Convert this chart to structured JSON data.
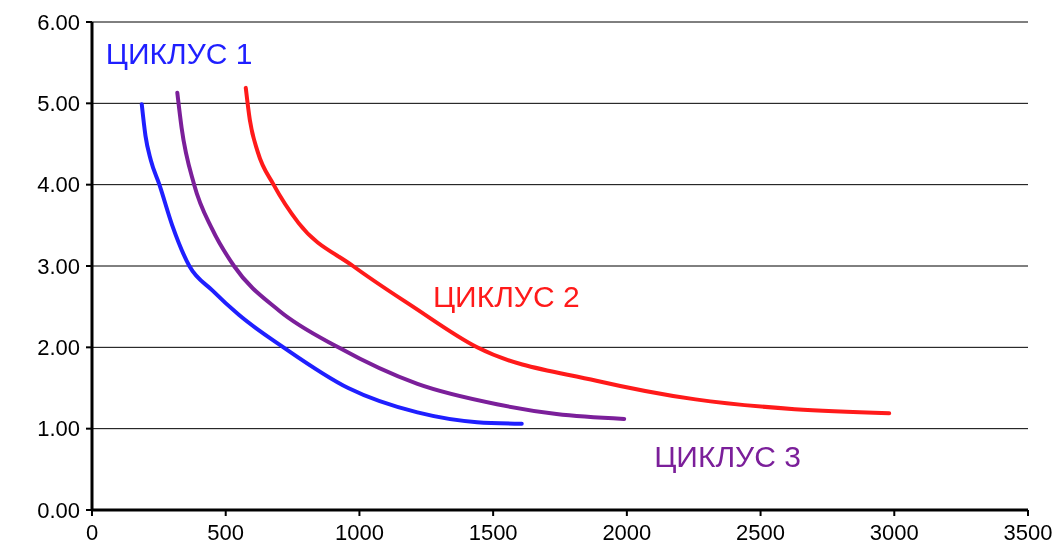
{
  "chart_data": {
    "type": "line",
    "xlim": [
      0,
      3500
    ],
    "xticks": [
      0,
      500,
      1000,
      1500,
      2000,
      2500,
      3000,
      3500
    ],
    "ylim": [
      0,
      6
    ],
    "yticks": [
      {
        "value": 0,
        "label": "0.00"
      },
      {
        "value": 1,
        "label": "1.00"
      },
      {
        "value": 2,
        "label": "2.00"
      },
      {
        "value": 3,
        "label": "3.00"
      },
      {
        "value": 4,
        "label": "4.00"
      },
      {
        "value": 5,
        "label": "5.00"
      },
      {
        "value": 6,
        "label": "6.00"
      }
    ],
    "grid": "y",
    "marker": "none",
    "line_style": "solid",
    "series": [
      {
        "name": "ЦИКЛУС 1",
        "color": "#1f1fff",
        "x": [
          186,
          200,
          220,
          252,
          300,
          364,
          450,
          549,
          716,
          958,
          1217,
          1440,
          1607
        ],
        "values": [
          4.99,
          4.6,
          4.3,
          4.0,
          3.5,
          3.0,
          2.7,
          2.4,
          2.0,
          1.5,
          1.2,
          1.08,
          1.06
        ]
      },
      {
        "name": "ЦИКЛУС 2",
        "color": "#ff1a1a",
        "x": [
          575,
          590,
          620,
          679,
          772,
          976,
          1200,
          1440,
          1886,
          2257,
          2628,
          2981
        ],
        "values": [
          5.19,
          4.8,
          4.4,
          4.0,
          3.53,
          3.0,
          2.5,
          2.0,
          1.59,
          1.36,
          1.24,
          1.19
        ]
      },
      {
        "name": "ЦИКЛУС 3",
        "color": "#7b1f9a",
        "x": [
          319,
          335,
          382,
          450,
          531,
          700,
          921,
          1217,
          1514,
          1737,
          1990
        ],
        "values": [
          5.13,
          4.7,
          4.0,
          3.45,
          3.0,
          2.45,
          2.0,
          1.55,
          1.3,
          1.18,
          1.12
        ]
      }
    ]
  }
}
